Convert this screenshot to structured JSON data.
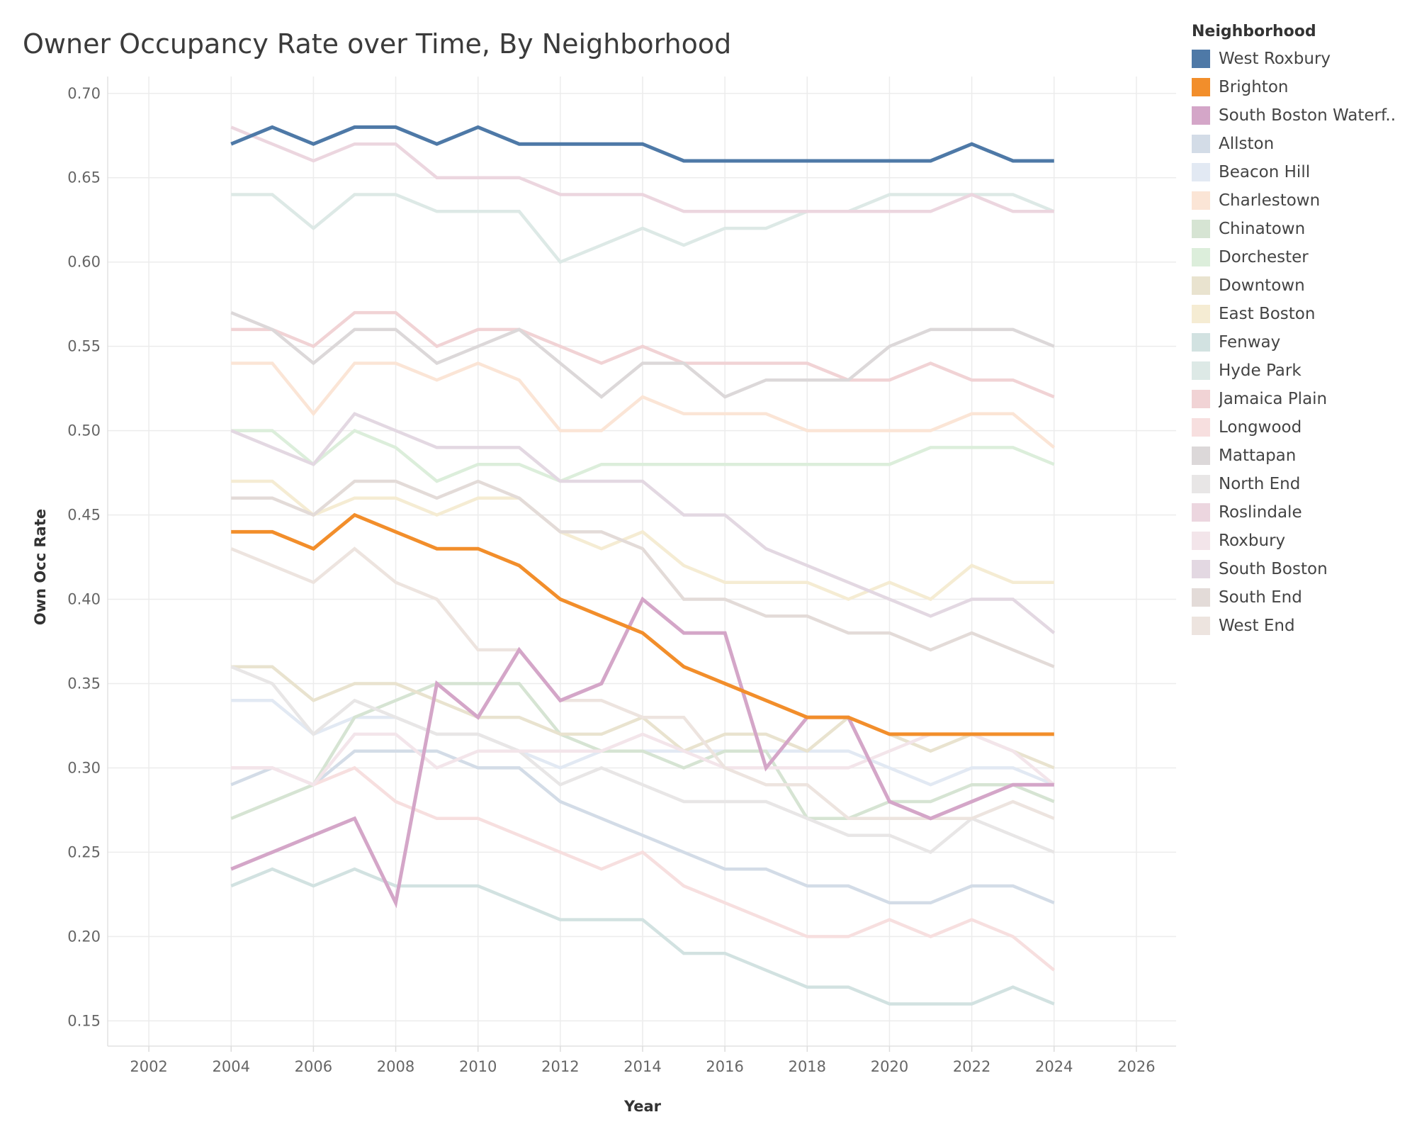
{
  "chart_data": {
    "type": "line",
    "title": "Owner Occupancy Rate over Time, By Neighborhood",
    "xlabel": "Year",
    "ylabel": "Own Occ Rate",
    "legend_title": "Neighborhood",
    "legend_placement": "right",
    "grid": true,
    "xlim": [
      2001,
      2027
    ],
    "ylim": [
      0.135,
      0.71
    ],
    "xticks": [
      2002,
      2004,
      2006,
      2008,
      2010,
      2012,
      2014,
      2016,
      2018,
      2020,
      2022,
      2024,
      2026
    ],
    "yticks": [
      0.7,
      0.65,
      0.6,
      0.55,
      0.5,
      0.45,
      0.4,
      0.35,
      0.3,
      0.25,
      0.2,
      0.15
    ],
    "x": [
      2004,
      2005,
      2006,
      2007,
      2008,
      2009,
      2010,
      2011,
      2012,
      2013,
      2014,
      2015,
      2016,
      2017,
      2018,
      2019,
      2020,
      2021,
      2022,
      2023,
      2024
    ],
    "series": [
      {
        "name": "West Roxbury",
        "color": "#4e79a7",
        "highlight": true,
        "values": [
          0.67,
          0.68,
          0.67,
          0.68,
          0.68,
          0.67,
          0.68,
          0.67,
          0.67,
          0.67,
          0.67,
          0.66,
          0.66,
          0.66,
          0.66,
          0.66,
          0.66,
          0.66,
          0.67,
          0.66,
          0.66
        ]
      },
      {
        "name": "Brighton",
        "color": "#f28e2b",
        "highlight": true,
        "values": [
          0.44,
          0.44,
          0.43,
          0.45,
          0.44,
          0.43,
          0.43,
          0.42,
          0.4,
          0.39,
          0.38,
          0.36,
          0.35,
          0.34,
          0.33,
          0.33,
          0.32,
          0.32,
          0.32,
          0.32,
          0.32
        ]
      },
      {
        "name": "South Boston Waterf..",
        "color": "#d4a6c8",
        "highlight": true,
        "values": [
          0.24,
          0.25,
          0.26,
          0.27,
          0.22,
          0.35,
          0.33,
          0.37,
          0.34,
          0.35,
          0.4,
          0.38,
          0.38,
          0.3,
          0.33,
          0.33,
          0.28,
          0.27,
          0.28,
          0.29,
          0.29
        ]
      },
      {
        "name": "Allston",
        "color": "#d3dce7",
        "values": [
          0.29,
          0.3,
          0.29,
          0.31,
          0.31,
          0.31,
          0.3,
          0.3,
          0.28,
          0.27,
          0.26,
          0.25,
          0.24,
          0.24,
          0.23,
          0.23,
          0.22,
          0.22,
          0.23,
          0.23,
          0.22
        ]
      },
      {
        "name": "Beacon Hill",
        "color": "#e2e9f3",
        "values": [
          0.34,
          0.34,
          0.32,
          0.33,
          0.33,
          0.32,
          0.32,
          0.31,
          0.3,
          0.31,
          0.31,
          0.31,
          0.31,
          0.31,
          0.31,
          0.31,
          0.3,
          0.29,
          0.3,
          0.3,
          0.29
        ]
      },
      {
        "name": "Charlestown",
        "color": "#fbe5d6",
        "values": [
          0.54,
          0.54,
          0.51,
          0.54,
          0.54,
          0.53,
          0.54,
          0.53,
          0.5,
          0.5,
          0.52,
          0.51,
          0.51,
          0.51,
          0.5,
          0.5,
          0.5,
          0.5,
          0.51,
          0.51,
          0.49
        ]
      },
      {
        "name": "Chinatown",
        "color": "#d6e4d3",
        "values": [
          0.27,
          0.28,
          0.29,
          0.33,
          0.34,
          0.35,
          0.35,
          0.35,
          0.32,
          0.31,
          0.31,
          0.3,
          0.31,
          0.31,
          0.27,
          0.27,
          0.28,
          0.28,
          0.29,
          0.29,
          0.28
        ]
      },
      {
        "name": "Dorchester",
        "color": "#dceedb",
        "values": [
          0.5,
          0.5,
          0.48,
          0.5,
          0.49,
          0.47,
          0.48,
          0.48,
          0.47,
          0.48,
          0.48,
          0.48,
          0.48,
          0.48,
          0.48,
          0.48,
          0.48,
          0.49,
          0.49,
          0.49,
          0.48
        ]
      },
      {
        "name": "Downtown",
        "color": "#e9e3cf",
        "values": [
          0.36,
          0.36,
          0.34,
          0.35,
          0.35,
          0.34,
          0.33,
          0.33,
          0.32,
          0.32,
          0.33,
          0.31,
          0.32,
          0.32,
          0.31,
          0.33,
          0.32,
          0.31,
          0.32,
          0.31,
          0.3
        ]
      },
      {
        "name": "East Boston",
        "color": "#f5ecd3",
        "values": [
          0.47,
          0.47,
          0.45,
          0.46,
          0.46,
          0.45,
          0.46,
          0.46,
          0.44,
          0.43,
          0.44,
          0.42,
          0.41,
          0.41,
          0.41,
          0.4,
          0.41,
          0.4,
          0.42,
          0.41,
          0.41
        ]
      },
      {
        "name": "Fenway",
        "color": "#d2e2e1",
        "values": [
          0.23,
          0.24,
          0.23,
          0.24,
          0.23,
          0.23,
          0.23,
          0.22,
          0.21,
          0.21,
          0.21,
          0.19,
          0.19,
          0.18,
          0.17,
          0.17,
          0.16,
          0.16,
          0.16,
          0.17,
          0.16
        ]
      },
      {
        "name": "Hyde Park",
        "color": "#dde9e6",
        "values": [
          0.64,
          0.64,
          0.62,
          0.64,
          0.64,
          0.63,
          0.63,
          0.63,
          0.6,
          0.61,
          0.62,
          0.61,
          0.62,
          0.62,
          0.63,
          0.63,
          0.64,
          0.64,
          0.64,
          0.64,
          0.63
        ]
      },
      {
        "name": "Jamaica Plain",
        "color": "#f1d3d5",
        "values": [
          0.56,
          0.56,
          0.55,
          0.57,
          0.57,
          0.55,
          0.56,
          0.56,
          0.55,
          0.54,
          0.55,
          0.54,
          0.54,
          0.54,
          0.54,
          0.53,
          0.53,
          0.54,
          0.53,
          0.53,
          0.52
        ]
      },
      {
        "name": "Longwood",
        "color": "#f7dfdf",
        "values": [
          0.3,
          0.3,
          0.29,
          0.3,
          0.28,
          0.27,
          0.27,
          0.26,
          0.25,
          0.24,
          0.25,
          0.23,
          0.22,
          0.21,
          0.2,
          0.2,
          0.21,
          0.2,
          0.21,
          0.2,
          0.18
        ]
      },
      {
        "name": "Mattapan",
        "color": "#dcd8d9",
        "values": [
          0.57,
          0.56,
          0.54,
          0.56,
          0.56,
          0.54,
          0.55,
          0.56,
          0.54,
          0.52,
          0.54,
          0.54,
          0.52,
          0.53,
          0.53,
          0.53,
          0.55,
          0.56,
          0.56,
          0.56,
          0.55
        ]
      },
      {
        "name": "North End",
        "color": "#e8e6e6",
        "values": [
          0.36,
          0.35,
          0.32,
          0.34,
          0.33,
          0.32,
          0.32,
          0.31,
          0.29,
          0.3,
          0.29,
          0.28,
          0.28,
          0.28,
          0.27,
          0.26,
          0.26,
          0.25,
          0.27,
          0.26,
          0.25
        ]
      },
      {
        "name": "Roslindale",
        "color": "#ecd6df",
        "values": [
          0.68,
          0.67,
          0.66,
          0.67,
          0.67,
          0.65,
          0.65,
          0.65,
          0.64,
          0.64,
          0.64,
          0.63,
          0.63,
          0.63,
          0.63,
          0.63,
          0.63,
          0.63,
          0.64,
          0.63,
          0.63
        ]
      },
      {
        "name": "Roxbury",
        "color": "#f3e5ea",
        "values": [
          0.3,
          0.3,
          0.29,
          0.32,
          0.32,
          0.3,
          0.31,
          0.31,
          0.31,
          0.31,
          0.32,
          0.31,
          0.3,
          0.3,
          0.3,
          0.3,
          0.31,
          0.32,
          0.32,
          0.31,
          0.29
        ]
      },
      {
        "name": "South Boston",
        "color": "#e3d8e2",
        "values": [
          0.5,
          0.49,
          0.48,
          0.51,
          0.5,
          0.49,
          0.49,
          0.49,
          0.47,
          0.47,
          0.47,
          0.45,
          0.45,
          0.43,
          0.42,
          0.41,
          0.4,
          0.39,
          0.4,
          0.4,
          0.38
        ]
      },
      {
        "name": "South End",
        "color": "#e3dbd8",
        "values": [
          0.46,
          0.46,
          0.45,
          0.47,
          0.47,
          0.46,
          0.47,
          0.46,
          0.44,
          0.44,
          0.43,
          0.4,
          0.4,
          0.39,
          0.39,
          0.38,
          0.38,
          0.37,
          0.38,
          0.37,
          0.36
        ]
      },
      {
        "name": "West End",
        "color": "#ede4df",
        "values": [
          0.43,
          0.42,
          0.41,
          0.43,
          0.41,
          0.4,
          0.37,
          0.37,
          0.34,
          0.34,
          0.33,
          0.33,
          0.3,
          0.29,
          0.29,
          0.27,
          0.27,
          0.27,
          0.27,
          0.28,
          0.27
        ]
      }
    ]
  }
}
